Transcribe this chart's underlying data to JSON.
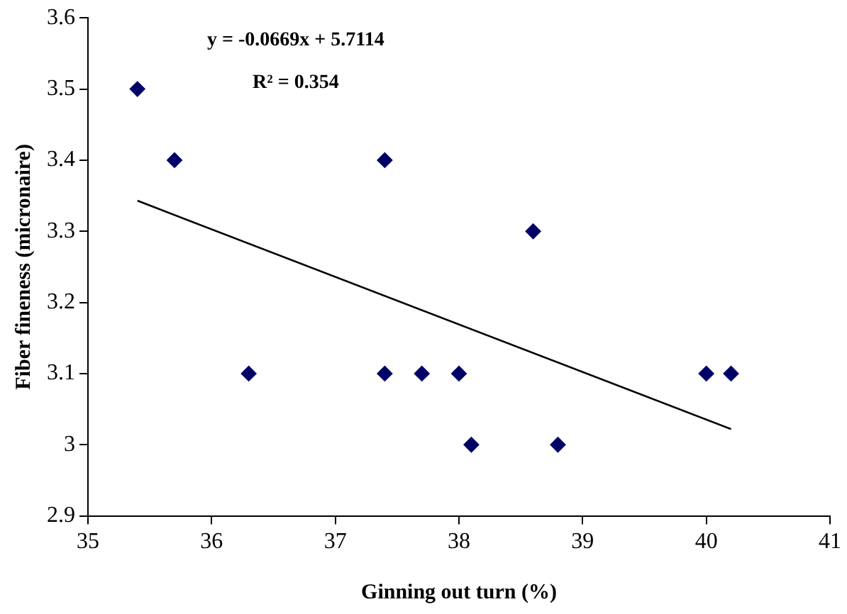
{
  "chart_data": {
    "type": "scatter",
    "xlabel": "Ginning out turn (%)",
    "ylabel": "Fiber fineness (micronaire)",
    "annotations": [
      "y = -0.0669x + 5.7114",
      "R² = 0.354"
    ],
    "xlim": [
      35,
      41
    ],
    "xticks": [
      35,
      36,
      37,
      38,
      39,
      40,
      41
    ],
    "ylim": [
      2.9,
      3.6
    ],
    "yticks": [
      {
        "value": 2.9,
        "label": "2.9"
      },
      {
        "value": 3,
        "label": "3"
      },
      {
        "value": 3.1,
        "label": "3.1"
      },
      {
        "value": 3.2,
        "label": "3.2"
      },
      {
        "value": 3.3,
        "label": "3.3"
      },
      {
        "value": 3.4,
        "label": "3.4"
      },
      {
        "value": 3.5,
        "label": "3.5"
      },
      {
        "value": 3.6,
        "label": "3.6"
      }
    ],
    "grid": false,
    "legend": false,
    "series": [
      {
        "marker": "diamond",
        "color": "#000066",
        "x": [
          35.4,
          35.7,
          36.3,
          37.4,
          37.4,
          37.7,
          38.0,
          38.1,
          38.6,
          38.8,
          40.0,
          40.2
        ],
        "values": [
          3.5,
          3.4,
          3.1,
          3.4,
          3.1,
          3.1,
          3.1,
          3.0,
          3.3,
          3.0,
          3.1,
          3.1
        ]
      },
      {
        "type": "line",
        "marker": "none",
        "color": "#000000",
        "x": [
          35.4,
          40.2
        ],
        "values": [
          3.343,
          3.022
        ]
      }
    ]
  }
}
